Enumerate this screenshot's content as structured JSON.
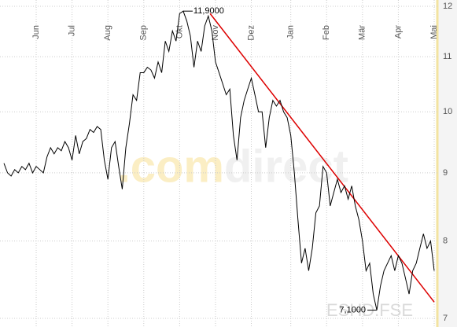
{
  "chart_data": {
    "type": "line",
    "series": [
      {
        "name": "ESHD.FSE",
        "color": "#000000",
        "values": [
          9.15,
          9.0,
          8.95,
          9.05,
          9.0,
          9.1,
          9.05,
          9.15,
          9.0,
          9.1,
          9.05,
          9.0,
          9.25,
          9.4,
          9.3,
          9.4,
          9.35,
          9.5,
          9.4,
          9.2,
          9.6,
          9.3,
          9.5,
          9.55,
          9.7,
          9.65,
          9.75,
          9.7,
          9.2,
          8.9,
          9.4,
          9.5,
          9.1,
          8.75,
          9.4,
          9.8,
          10.3,
          10.2,
          10.7,
          10.7,
          10.8,
          10.75,
          10.6,
          10.9,
          10.7,
          11.3,
          11.1,
          11.5,
          11.3,
          11.85,
          11.9,
          11.7,
          11.4,
          10.8,
          11.3,
          11.1,
          11.6,
          11.8,
          11.5,
          10.9,
          10.7,
          10.5,
          10.3,
          10.4,
          9.6,
          9.2,
          9.9,
          10.2,
          10.4,
          10.6,
          10.3,
          10.0,
          10.0,
          9.4,
          9.9,
          10.2,
          10.1,
          10.2,
          10.0,
          9.9,
          9.6,
          9.0,
          8.3,
          7.7,
          7.9,
          7.6,
          7.9,
          8.4,
          8.5,
          9.1,
          9.0,
          8.5,
          8.7,
          8.9,
          8.7,
          8.8,
          8.6,
          8.8,
          8.5,
          8.3,
          8.0,
          7.6,
          7.7,
          7.3,
          7.1,
          7.4,
          7.6,
          7.7,
          7.8,
          7.6,
          7.8,
          7.7,
          7.5,
          7.3,
          7.6,
          7.7,
          7.9,
          8.1,
          7.9,
          8.0,
          7.6
        ]
      }
    ],
    "xlim": [
      0,
      120
    ],
    "xticks": [
      {
        "value": 9,
        "label": "Jun"
      },
      {
        "value": 19,
        "label": "Jul"
      },
      {
        "value": 29,
        "label": "Aug"
      },
      {
        "value": 39,
        "label": "Sep"
      },
      {
        "value": 49,
        "label": "Okt"
      },
      {
        "value": 59,
        "label": "Nov"
      },
      {
        "value": 69,
        "label": "Dez"
      },
      {
        "value": 80,
        "label": "Jan"
      },
      {
        "value": 90,
        "label": "Feb"
      },
      {
        "value": 100,
        "label": "Mär"
      },
      {
        "value": 110,
        "label": "Apr"
      },
      {
        "value": 120,
        "label": "Mai"
      }
    ],
    "ylim": [
      7,
      12
    ],
    "yticks": [
      7,
      8,
      9,
      10,
      11,
      12
    ],
    "log_scale": true,
    "grid": true,
    "trendline": {
      "color": "#dd0000",
      "x": [
        57.5,
        120
      ],
      "y": [
        11.85,
        7.2
      ]
    },
    "annotations": [
      {
        "text": "11,9000",
        "x": 50,
        "y": 11.9
      },
      {
        "text": "7,1000",
        "x": 104,
        "y": 7.1
      }
    ],
    "watermark": [
      ".com",
      "direct"
    ],
    "symbol": "ESHD.FSE"
  }
}
